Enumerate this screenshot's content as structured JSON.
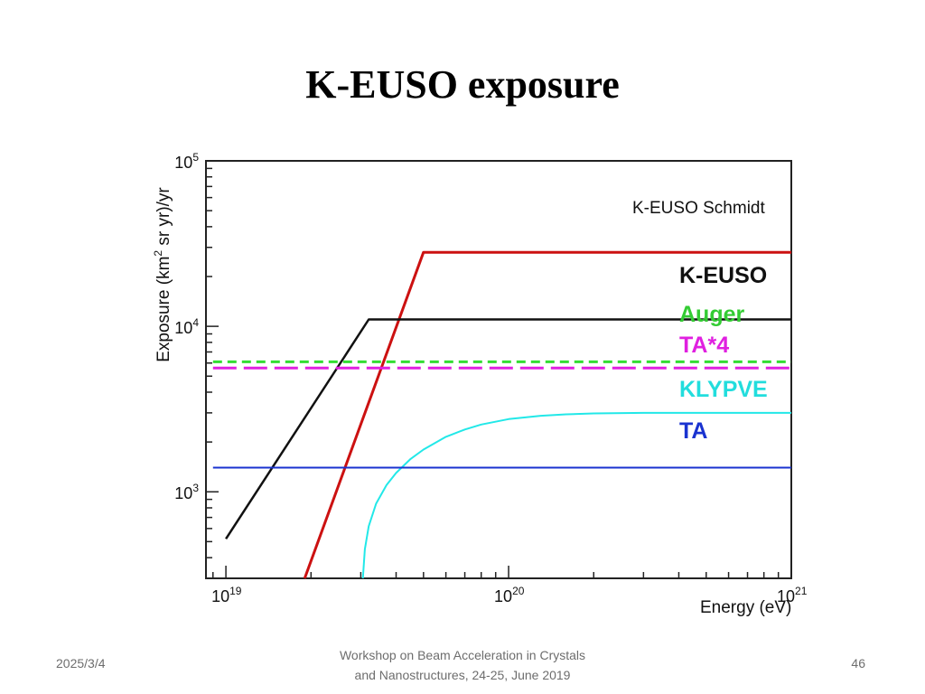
{
  "slide": {
    "title": "K-EUSO exposure",
    "footer_date": "2025/3/4",
    "footer_line1": "Workshop on Beam Acceleration in Crystals",
    "footer_line2": "and Nanostructures, 24-25, June 2019",
    "page_number": "46"
  },
  "chart_data": {
    "type": "line",
    "title": "",
    "xlabel": "Energy (eV)",
    "ylabel_base": "Exposure (km",
    "ylabel_sup": "2",
    "ylabel_tail": " sr yr)/yr",
    "xscale": "log",
    "yscale": "log",
    "xlim": [
      8.5e+18,
      1e+21
    ],
    "ylim": [
      300,
      100000
    ],
    "grid": false,
    "x_ticks": [
      {
        "base": "10",
        "exp": "19",
        "value": 1e+19
      },
      {
        "base": "10",
        "exp": "20",
        "value": 1e+20
      },
      {
        "base": "10",
        "exp": "21",
        "value": 1e+21
      }
    ],
    "y_ticks": [
      {
        "base": "10",
        "exp": "3",
        "value": 1000
      },
      {
        "base": "10",
        "exp": "4",
        "value": 10000
      },
      {
        "base": "10",
        "exp": "5",
        "value": 100000
      }
    ],
    "series": [
      {
        "name": "K-EUSO Schmidt",
        "color": "#cc1111",
        "style": "solid",
        "width": 3,
        "x": [
          1.9e+19,
          5e+19,
          1e+21
        ],
        "y": [
          300,
          28000,
          28000
        ]
      },
      {
        "name": "K-EUSO",
        "color": "#111111",
        "style": "solid",
        "width": 2.5,
        "x": [
          1e+19,
          3.2e+19,
          1e+21
        ],
        "y": [
          520,
          11000,
          11000
        ]
      },
      {
        "name": "Auger",
        "color": "#33dd33",
        "style": "dashed",
        "width": 3,
        "x": [
          9e+18,
          1e+21
        ],
        "y": [
          6100,
          6100
        ]
      },
      {
        "name": "TA*4",
        "color": "#e020e0",
        "style": "longdash",
        "width": 3,
        "x": [
          9e+18,
          1e+21
        ],
        "y": [
          5600,
          5600
        ]
      },
      {
        "name": "KLYPVE",
        "color": "#22e8e8",
        "style": "solid",
        "width": 2,
        "x": [
          3.05e+19,
          3.1e+19,
          3.2e+19,
          3.4e+19,
          3.7e+19,
          4e+19,
          4.5e+19,
          5e+19,
          6e+19,
          7e+19,
          8e+19,
          1e+20,
          1.3e+20,
          1.6e+20,
          2e+20,
          3e+20,
          5e+20,
          1e+21
        ],
        "y": [
          300,
          450,
          620,
          850,
          1100,
          1300,
          1580,
          1800,
          2150,
          2380,
          2550,
          2750,
          2880,
          2940,
          2975,
          3000,
          3000,
          3000
        ]
      },
      {
        "name": "TA",
        "color": "#1a33d0",
        "style": "solid",
        "width": 2,
        "x": [
          9e+18,
          1e+21
        ],
        "y": [
          1400,
          1400
        ]
      }
    ],
    "legend_placement": "right",
    "legend": [
      {
        "text": "K-EUSO Schmidt",
        "color": "#111111",
        "bold": false,
        "size": 19
      },
      {
        "text": "K-EUSO",
        "color": "#111111",
        "bold": true,
        "size": 25
      },
      {
        "text": "Auger",
        "color": "#33cc33",
        "bold": true,
        "size": 25
      },
      {
        "text": "TA*4",
        "color": "#e020e0",
        "bold": true,
        "size": 25
      },
      {
        "text": "KLYPVE",
        "color": "#22dddd",
        "bold": true,
        "size": 25
      },
      {
        "text": "TA",
        "color": "#1a33d0",
        "bold": true,
        "size": 25
      }
    ]
  }
}
